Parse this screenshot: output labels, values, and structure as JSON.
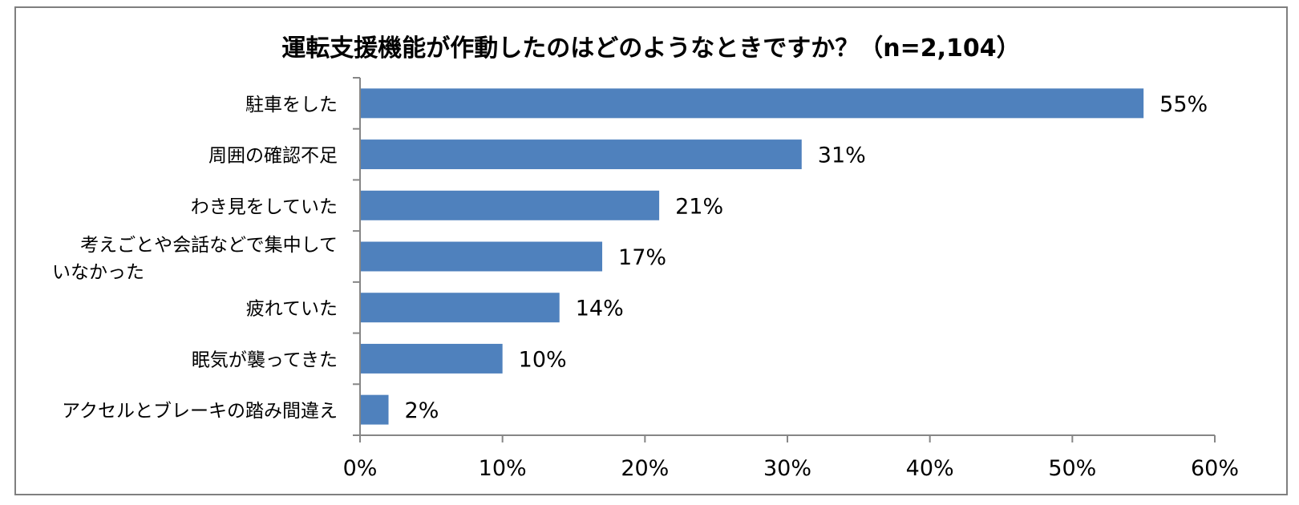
{
  "chart_data": {
    "type": "bar",
    "orientation": "horizontal",
    "title": "運転支援機能が作動したのはどのようなときですか？（n=2,104）",
    "categories": [
      [
        "駐車をした"
      ],
      [
        "周囲の確認不足"
      ],
      [
        "わき見をしていた"
      ],
      [
        "考えごとや会話などで集中して",
        "いなかった"
      ],
      [
        "疲れていた"
      ],
      [
        "眠気が襲ってきた"
      ],
      [
        "アクセルとブレーキの踏み間違え"
      ]
    ],
    "values": [
      55,
      31,
      21,
      17,
      14,
      10,
      2
    ],
    "value_labels": [
      "55%",
      "31%",
      "21%",
      "17%",
      "14%",
      "10%",
      "2%"
    ],
    "xlim": [
      0,
      60
    ],
    "x_ticks": [
      0,
      10,
      20,
      30,
      40,
      50,
      60
    ],
    "x_tick_labels": [
      "0%",
      "10%",
      "20%",
      "30%",
      "40%",
      "50%",
      "60%"
    ],
    "bar_color": "#4f81bd",
    "grid": false,
    "legend": "none"
  }
}
